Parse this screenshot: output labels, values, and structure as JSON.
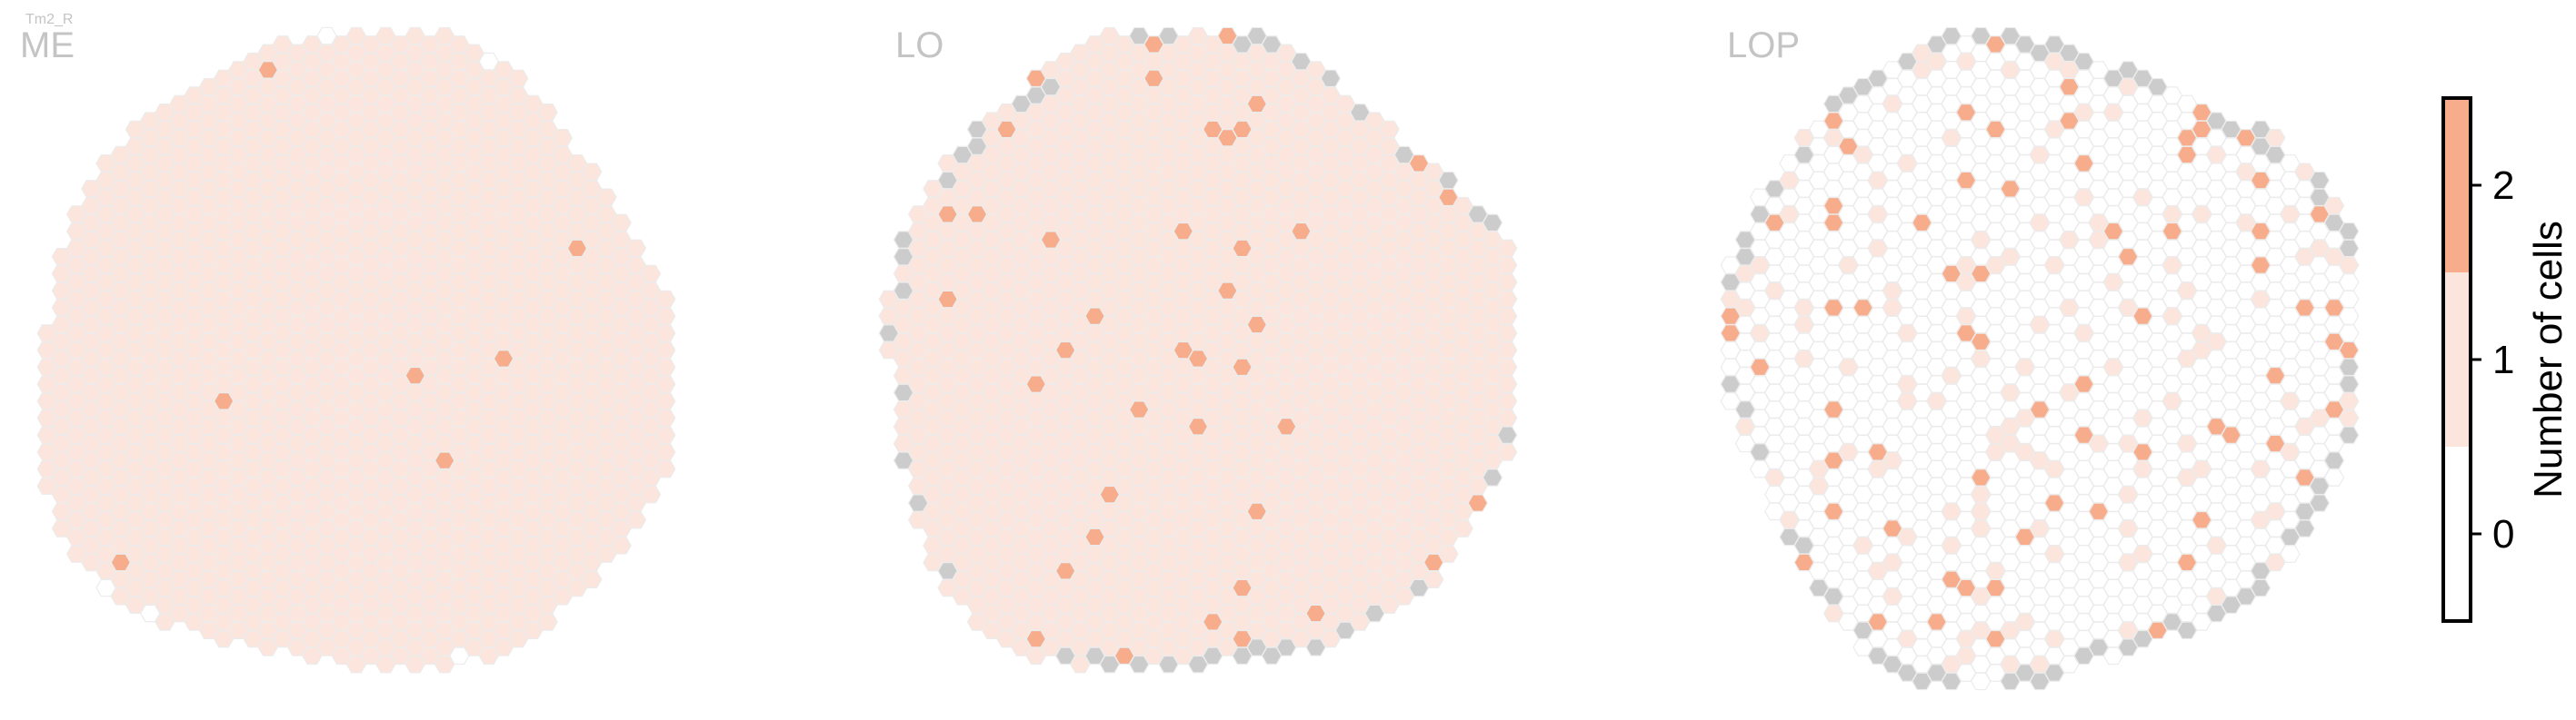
{
  "chart_data": {
    "type": "heatmap",
    "title": "Tm2_R",
    "panels": [
      {
        "name": "ME",
        "counts": {
          "2": [
            [
              -1.3,
              7.8
            ],
            [
              1.1,
              19.9
            ]
          ],
          "missing": []
        },
        "empty_cells": [
          [
            0,
            1
          ],
          [
            -1,
            -1
          ]
        ]
      },
      {
        "name": "LO",
        "counts": {
          "2": [
            [
              -1.2,
              2.7
            ],
            [
              -4.6,
              1.7
            ],
            [
              -5.6,
              3.5
            ],
            [
              -4.1,
              5.9
            ],
            [
              3.3,
              0.1
            ],
            [
              0.1,
              13.3
            ],
            [
              5.5,
              10.4
            ],
            [
              7.6,
              6.2
            ],
            [
              3.6,
              18.5
            ],
            [
              10.2,
              17.8
            ],
            [
              -3.8,
              20.9
            ],
            [
              2.5,
              23.9
            ],
            [
              -6.6,
              13.4
            ],
            [
              -6.8,
              9.9
            ],
            [
              -5.4,
              16.8
            ],
            [
              12.7,
              9.4
            ],
            [
              9.4,
              20.8
            ]
          ],
          "missing": []
        }
      },
      {
        "name": "LOP",
        "counts": {}
      }
    ],
    "colorbar": {
      "label": "Number of cells",
      "ticks": [
        "0",
        "1",
        "2"
      ],
      "colors": {
        "0": "#ffffff",
        "1": "#fbe5dc",
        "2": "#f7ac8c"
      },
      "missing_color": "#cccccc",
      "cell_edge_color": "#ececec"
    }
  },
  "labels": {
    "title": "Tm2_R",
    "panels": [
      "ME",
      "LO",
      "LOP"
    ],
    "colorbar_label": "Number of cells",
    "colorbar_ticks": [
      "0",
      "1",
      "2"
    ]
  }
}
